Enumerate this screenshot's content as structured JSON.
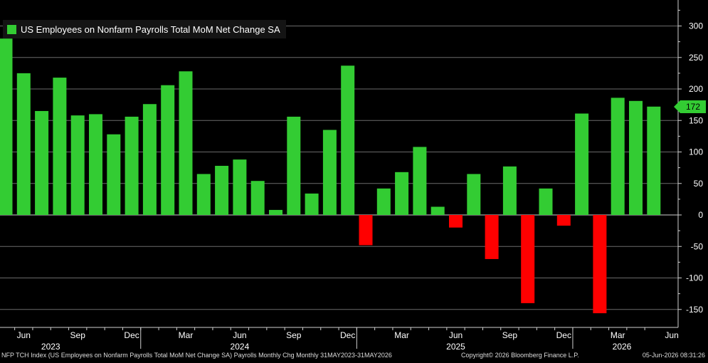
{
  "legend": {
    "label": "US Employees on Nonfarm Payrolls Total MoM Net Change SA",
    "color": "#33cc33"
  },
  "last_value": "172",
  "footer": {
    "left": "NFP TCH Index (US Employees on Nonfarm Payrolls Total MoM Net Change SA) Payrolls Monthly Chg Monthly 31MAY2023-31MAY2026",
    "middle": "Copyright© 2026 Bloomberg Finance L.P.",
    "right": "05-Jun-2026 08:31:26"
  },
  "chart_data": {
    "type": "bar",
    "title": "",
    "xlabel": "",
    "ylabel": "",
    "ylim": [
      -170,
      340
    ],
    "yticks": [
      300,
      250,
      200,
      150,
      100,
      50,
      0,
      -50,
      -100,
      -150
    ],
    "grid": true,
    "legend_position": "top-left",
    "positive_color": "#33cc33",
    "negative_color": "#ff0000",
    "categories": [
      "May 2023",
      "Jun 2023",
      "Jul 2023",
      "Aug 2023",
      "Sep 2023",
      "Oct 2023",
      "Nov 2023",
      "Dec 2023",
      "Jan 2024",
      "Feb 2024",
      "Mar 2024",
      "Apr 2024",
      "May 2024",
      "Jun 2024",
      "Jul 2024",
      "Aug 2024",
      "Sep 2024",
      "Oct 2024",
      "Nov 2024",
      "Dec 2024",
      "Jan 2025",
      "Feb 2025",
      "Mar 2025",
      "Apr 2025",
      "May 2025",
      "Jun 2025",
      "Jul 2025",
      "Aug 2025",
      "Sep 2025",
      "Oct 2025",
      "Nov 2025",
      "Dec 2025",
      "Jan 2026",
      "Feb 2026",
      "Mar 2026",
      "Apr 2026",
      "May 2026"
    ],
    "values": [
      280,
      225,
      165,
      218,
      158,
      160,
      128,
      156,
      176,
      206,
      228,
      65,
      78,
      88,
      54,
      8,
      156,
      34,
      135,
      237,
      -48,
      42,
      68,
      108,
      13,
      -20,
      65,
      -70,
      77,
      -140,
      42,
      -17,
      161,
      -156,
      186,
      181,
      172
    ],
    "x_tick_labels": [
      "Jun",
      "Sep",
      "Dec",
      "Mar",
      "Jun",
      "Sep",
      "Dec",
      "Mar",
      "Jun",
      "Sep",
      "Dec",
      "Mar",
      "Jun"
    ],
    "x_tick_month_index": [
      1,
      4,
      7,
      10,
      13,
      16,
      19,
      22,
      25,
      28,
      31,
      34,
      37
    ],
    "year_labels": [
      "2023",
      "2024",
      "2025",
      "2026"
    ],
    "year_month_index": [
      2.5,
      13,
      25,
      37
    ]
  }
}
